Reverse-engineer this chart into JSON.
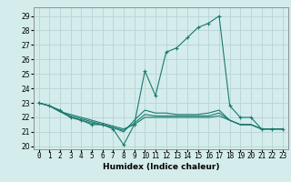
{
  "title": "",
  "xlabel": "Humidex (Indice chaleur)",
  "ylabel": "",
  "background_color": "#d4ecec",
  "grid_color": "#b8d4d4",
  "line_color": "#1a7a6e",
  "xlim": [
    -0.5,
    23.5
  ],
  "ylim": [
    19.8,
    29.6
  ],
  "yticks": [
    20,
    21,
    22,
    23,
    24,
    25,
    26,
    27,
    28,
    29
  ],
  "xticks": [
    0,
    1,
    2,
    3,
    4,
    5,
    6,
    7,
    8,
    9,
    10,
    11,
    12,
    13,
    14,
    15,
    16,
    17,
    18,
    19,
    20,
    21,
    22,
    23
  ],
  "series": [
    {
      "x": [
        0,
        1,
        2,
        3,
        4,
        5,
        6,
        7,
        8,
        9,
        10,
        11,
        12,
        13,
        14,
        15,
        16,
        17,
        18,
        19,
        20,
        21,
        22,
        23
      ],
      "y": [
        23.0,
        22.8,
        22.5,
        22.0,
        21.8,
        21.5,
        21.5,
        21.2,
        20.1,
        21.5,
        25.2,
        23.5,
        26.5,
        26.8,
        27.5,
        28.2,
        28.5,
        29.0,
        22.8,
        22.0,
        22.0,
        21.2,
        21.2,
        21.2
      ],
      "marker": "+"
    },
    {
      "x": [
        0,
        1,
        2,
        3,
        4,
        5,
        6,
        7,
        8,
        9,
        10,
        11,
        12,
        13,
        14,
        15,
        16,
        17,
        18,
        19,
        20,
        21,
        22,
        23
      ],
      "y": [
        23.0,
        22.8,
        22.4,
        22.0,
        21.8,
        21.6,
        21.5,
        21.3,
        21.0,
        21.8,
        22.5,
        22.3,
        22.3,
        22.2,
        22.2,
        22.2,
        22.3,
        22.5,
        21.8,
        21.5,
        21.5,
        21.2,
        21.2,
        21.2
      ],
      "marker": null
    },
    {
      "x": [
        0,
        1,
        2,
        3,
        4,
        5,
        6,
        7,
        8,
        9,
        10,
        11,
        12,
        13,
        14,
        15,
        16,
        17,
        18,
        19,
        20,
        21,
        22,
        23
      ],
      "y": [
        23.0,
        22.8,
        22.4,
        22.1,
        21.9,
        21.7,
        21.5,
        21.3,
        21.1,
        21.6,
        22.2,
        22.1,
        22.1,
        22.1,
        22.1,
        22.1,
        22.1,
        22.3,
        21.8,
        21.5,
        21.5,
        21.2,
        21.2,
        21.2
      ],
      "marker": null
    },
    {
      "x": [
        0,
        1,
        2,
        3,
        4,
        5,
        6,
        7,
        8,
        9,
        10,
        11,
        12,
        13,
        14,
        15,
        16,
        17,
        18,
        19,
        20,
        21,
        22,
        23
      ],
      "y": [
        23.0,
        22.8,
        22.4,
        22.2,
        22.0,
        21.8,
        21.6,
        21.4,
        21.2,
        21.5,
        22.0,
        22.0,
        22.0,
        22.0,
        22.0,
        22.0,
        22.0,
        22.1,
        21.8,
        21.5,
        21.5,
        21.2,
        21.2,
        21.2
      ],
      "marker": null
    }
  ],
  "tick_fontsize": 5.5,
  "xlabel_fontsize": 6.5,
  "xlabel_fontweight": "bold"
}
